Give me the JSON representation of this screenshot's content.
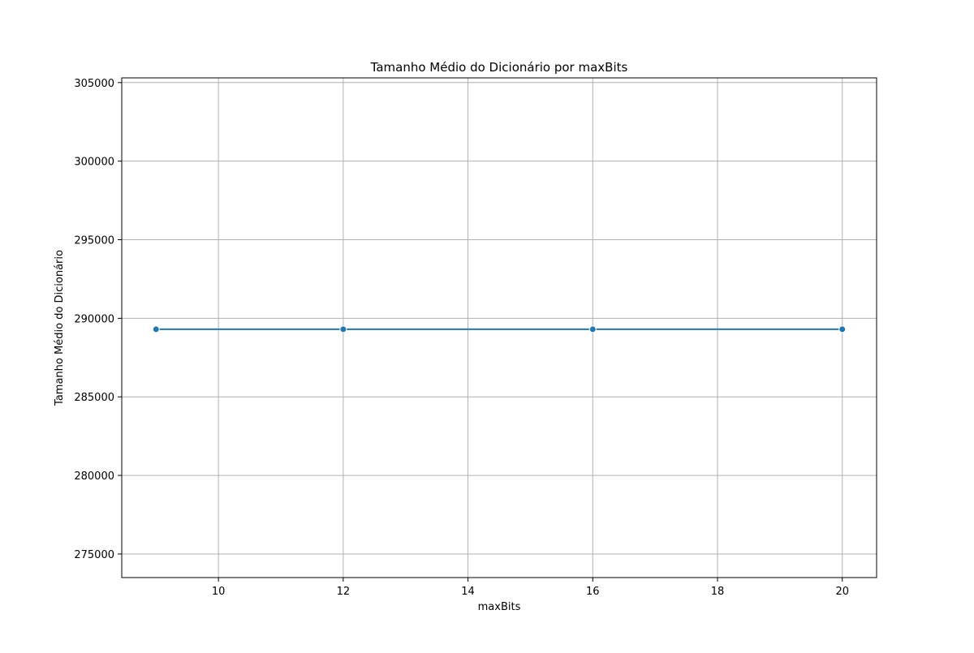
{
  "chart_data": {
    "type": "line",
    "title": "Tamanho Médio do Dicionário por maxBits",
    "xlabel": "maxBits",
    "ylabel": "Tamanho Médio do Dicionário",
    "xlim": [
      8.45,
      20.55
    ],
    "ylim": [
      273500,
      305300
    ],
    "xticks": [
      10,
      12,
      14,
      16,
      18,
      20
    ],
    "yticks": [
      275000,
      280000,
      285000,
      290000,
      295000,
      300000,
      305000
    ],
    "grid": true,
    "series": [
      {
        "color": "#1f77b4",
        "marker": "circle",
        "x": [
          9,
          12,
          16,
          20
        ],
        "y": [
          289300,
          289300,
          289300,
          289300
        ]
      }
    ]
  }
}
